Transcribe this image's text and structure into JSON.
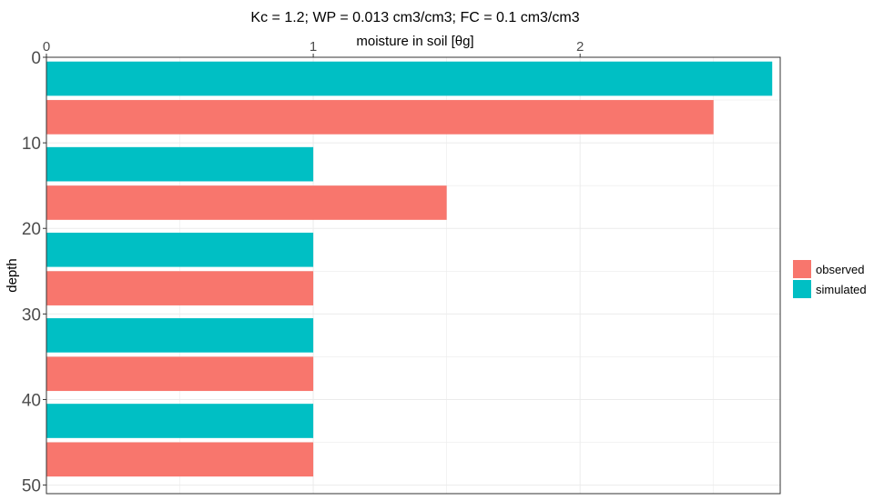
{
  "chart_data": {
    "type": "bar",
    "orientation": "horizontal",
    "title": "Kc = 1.2; WP = 0.013 cm3/cm3; FC = 0.1 cm3/cm3",
    "xlabel": "moisture in soil [θg]",
    "ylabel": "depth",
    "x_axis_position": "top",
    "y_axis_reversed": true,
    "xlim": [
      0,
      2.75
    ],
    "ylim": [
      0,
      51
    ],
    "xticks": [
      "0",
      "1",
      "2"
    ],
    "yticks": [
      "0",
      "10",
      "20",
      "30",
      "40",
      "50"
    ],
    "grid": true,
    "legend_position": "right",
    "bar_height": 4,
    "series": [
      {
        "name": "observed",
        "color": "#F8766D",
        "points": [
          {
            "depth": 7,
            "value": 2.5
          },
          {
            "depth": 17,
            "value": 1.5
          },
          {
            "depth": 27,
            "value": 1.0
          },
          {
            "depth": 37,
            "value": 1.0
          },
          {
            "depth": 47,
            "value": 1.0
          }
        ]
      },
      {
        "name": "simulated",
        "color": "#00BFC4",
        "points": [
          {
            "depth": 2.5,
            "value": 2.72
          },
          {
            "depth": 12.5,
            "value": 1.0
          },
          {
            "depth": 22.5,
            "value": 1.0
          },
          {
            "depth": 32.5,
            "value": 1.0
          },
          {
            "depth": 42.5,
            "value": 1.0
          }
        ]
      }
    ]
  }
}
